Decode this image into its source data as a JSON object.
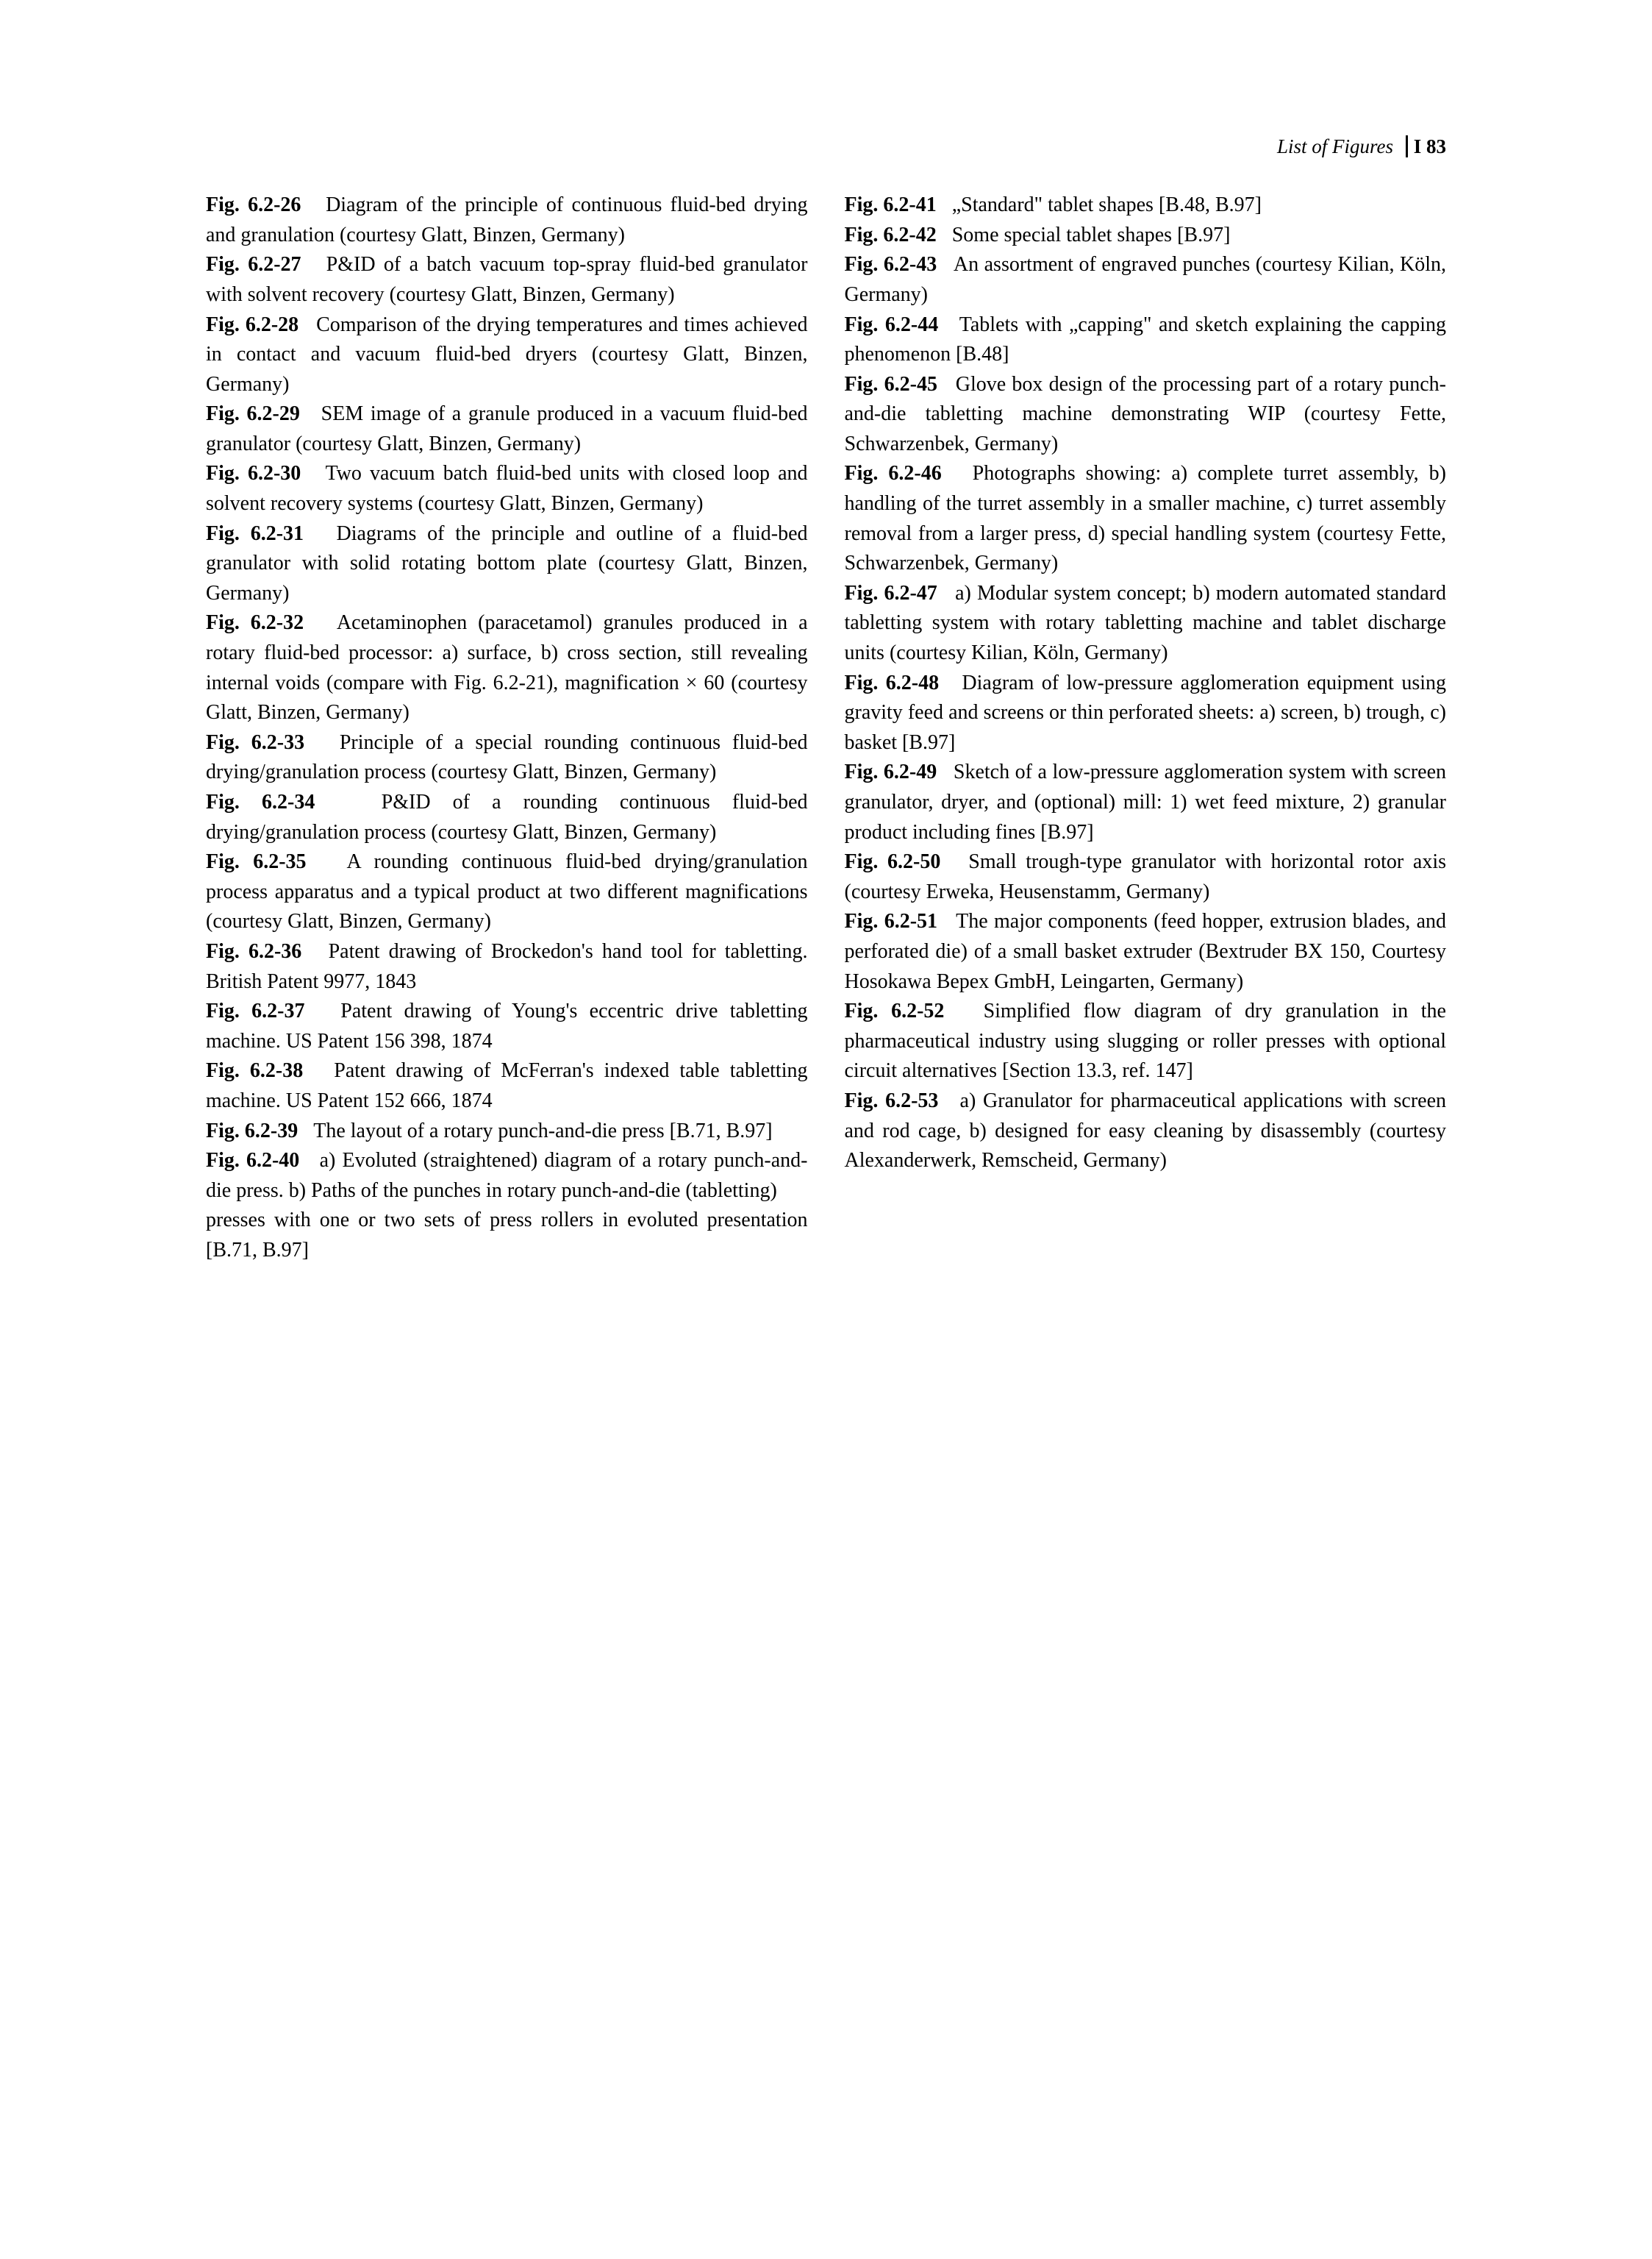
{
  "header": {
    "title": "List of Figures",
    "page": "I 83"
  },
  "left": [
    {
      "label": "Fig. 6.2-26",
      "text": "Diagram of the principle of continuous fluid-bed drying and granulation (courtesy Glatt, Binzen, Germany)"
    },
    {
      "label": "Fig. 6.2-27",
      "text": "P&ID of a batch vacuum top-spray fluid-bed granulator with solvent recovery (courtesy Glatt, Binzen, Germany)"
    },
    {
      "label": "Fig. 6.2-28",
      "text": "Comparison of the drying temperatures and times achieved in contact and vacuum fluid-bed dryers (courtesy Glatt, Binzen, Germany)"
    },
    {
      "label": "Fig. 6.2-29",
      "text": "SEM image of a granule produced in a vacuum fluid-bed granulator (courtesy Glatt, Binzen, Germany)"
    },
    {
      "label": "Fig. 6.2-30",
      "text": "Two vacuum batch fluid-bed units with closed loop and solvent recovery systems (courtesy Glatt, Binzen, Germany)"
    },
    {
      "label": "Fig. 6.2-31",
      "text": "Diagrams of the principle and outline of a fluid-bed granulator with solid rotating bottom plate (courtesy Glatt, Binzen, Germany)"
    },
    {
      "label": "Fig. 6.2-32",
      "text": "Acetaminophen (paracetamol) granules produced in a rotary fluid-bed processor: a) surface, b) cross section, still revealing internal voids (compare with Fig. 6.2-21), magnification × 60 (courtesy Glatt, Binzen, Germany)"
    },
    {
      "label": "Fig. 6.2-33",
      "text": "Principle of a special rounding continuous fluid-bed drying/granulation process (courtesy Glatt, Binzen, Germany)"
    },
    {
      "label": "Fig. 6.2-34",
      "text": "P&ID of a rounding continuous fluid-bed drying/granulation process (courtesy Glatt, Binzen, Germany)"
    },
    {
      "label": "Fig. 6.2-35",
      "text": "A rounding continuous fluid-bed drying/granulation process apparatus and a typical product at two different magnifications (courtesy Glatt, Binzen, Germany)"
    },
    {
      "label": "Fig. 6.2-36",
      "text": "Patent drawing of Brockedon's hand tool for tabletting. British Patent 9977, 1843"
    },
    {
      "label": "Fig. 6.2-37",
      "text": "Patent drawing of Young's eccentric drive tabletting machine. US Patent 156 398, 1874"
    },
    {
      "label": "Fig. 6.2-38",
      "text": "Patent drawing of McFerran's indexed table tabletting machine. US Patent 152 666, 1874"
    },
    {
      "label": "Fig. 6.2-39",
      "text": "The layout of a rotary punch-and-die press [B.71, B.97]"
    },
    {
      "label": "Fig. 6.2-40",
      "text": "a) Evoluted (straightened) diagram of a rotary punch-and-die press. b) Paths of the punches in rotary punch-and-die (tabletting)"
    },
    {
      "label": "",
      "text": "presses with one or two sets of press rollers in evoluted presentation [B.71, B.97]"
    }
  ],
  "right": [
    {
      "label": "Fig. 6.2-41",
      "text": "„Standard\" tablet shapes [B.48, B.97]"
    },
    {
      "label": "Fig. 6.2-42",
      "text": "Some special tablet shapes [B.97]"
    },
    {
      "label": "Fig. 6.2-43",
      "text": "An assortment of engraved punches (courtesy Kilian, Köln, Germany)"
    },
    {
      "label": "Fig. 6.2-44",
      "text": "Tablets with „capping\" and sketch explaining the capping phenomenon [B.48]"
    },
    {
      "label": "Fig. 6.2-45",
      "text": "Glove box design of the processing part of a rotary punch-and-die tabletting machine demonstrating WIP (courtesy Fette, Schwarzenbek, Germany)"
    },
    {
      "label": "Fig. 6.2-46",
      "text": "Photographs showing: a) complete turret assembly, b) handling of the turret assembly in a smaller machine, c) turret assembly removal from a larger press, d) special handling system (courtesy Fette, Schwarzenbek, Germany)"
    },
    {
      "label": "Fig. 6.2-47",
      "text": "a) Modular system concept; b) modern automated standard tabletting system with rotary tabletting machine and tablet discharge units (courtesy Kilian, Köln, Germany)"
    },
    {
      "label": "Fig. 6.2-48",
      "text": "Diagram of low-pressure agglomeration equipment using gravity feed and screens or thin perforated sheets: a) screen, b) trough, c) basket [B.97]"
    },
    {
      "label": "Fig. 6.2-49",
      "text": "Sketch of a low-pressure agglomeration system with screen granulator, dryer, and (optional) mill: 1) wet feed mixture, 2) granular product including fines [B.97]"
    },
    {
      "label": "Fig. 6.2-50",
      "text": "Small trough-type granulator with horizontal rotor axis (courtesy Erweka, Heusenstamm, Germany)"
    },
    {
      "label": "Fig. 6.2-51",
      "text": "The major components (feed hopper, extrusion blades, and perforated die) of a small basket extruder (Bextruder BX 150, Courtesy Hosokawa Bepex GmbH, Leingarten, Germany)"
    },
    {
      "label": "Fig. 6.2-52",
      "text": "Simplified flow diagram of dry granulation in the pharmaceutical industry using slugging or roller presses with optional circuit alternatives [Section 13.3, ref. 147]"
    },
    {
      "label": "Fig. 6.2-53",
      "text": "a) Granulator for pharmaceutical applications with screen and rod cage, b) designed for easy cleaning by disassembly (courtesy Alexanderwerk, Remscheid, Germany)"
    }
  ]
}
